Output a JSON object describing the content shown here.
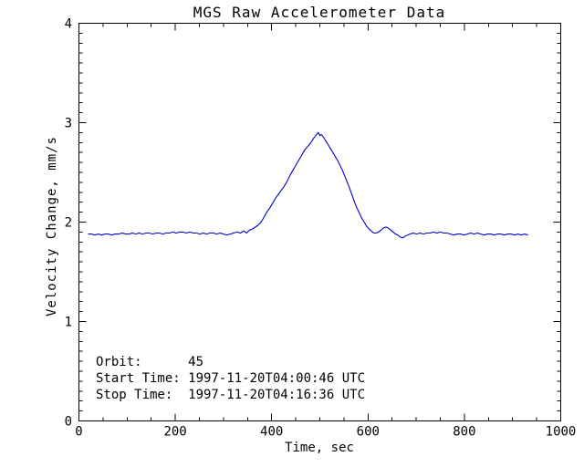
{
  "window": {
    "background": "#ffffff"
  },
  "chart_data": {
    "type": "line",
    "title": "MGS Raw Accelerometer Data",
    "xlabel": "Time, sec",
    "ylabel": "Velocity Change, mm/s",
    "xlim": [
      0,
      1000
    ],
    "ylim": [
      0,
      4
    ],
    "x_major_ticks": [
      0,
      200,
      400,
      600,
      800,
      1000
    ],
    "x_minor_interval": 50,
    "y_major_ticks": [
      0,
      1,
      2,
      3,
      4
    ],
    "y_minor_interval": 0.1,
    "grid": false,
    "legend": "none",
    "line_color": "#0000CD",
    "axis_color": "#000000",
    "annotations": {
      "lines": [
        "Orbit:      45",
        "Start Time: 1997-11-20T04:00:46 UTC",
        "Stop Time:  1997-11-20T04:16:36 UTC"
      ]
    },
    "series": [
      {
        "name": "velocity_change_mm_s",
        "points": [
          [
            19,
            1.88
          ],
          [
            26,
            1.88
          ],
          [
            33,
            1.87
          ],
          [
            40,
            1.88
          ],
          [
            47,
            1.87
          ],
          [
            54,
            1.88
          ],
          [
            61,
            1.88
          ],
          [
            68,
            1.87
          ],
          [
            75,
            1.88
          ],
          [
            82,
            1.88
          ],
          [
            90,
            1.89
          ],
          [
            97,
            1.88
          ],
          [
            104,
            1.88
          ],
          [
            111,
            1.89
          ],
          [
            118,
            1.88
          ],
          [
            125,
            1.89
          ],
          [
            132,
            1.88
          ],
          [
            139,
            1.89
          ],
          [
            146,
            1.89
          ],
          [
            153,
            1.88
          ],
          [
            160,
            1.89
          ],
          [
            167,
            1.89
          ],
          [
            174,
            1.88
          ],
          [
            181,
            1.89
          ],
          [
            188,
            1.89
          ],
          [
            195,
            1.9
          ],
          [
            202,
            1.89
          ],
          [
            209,
            1.9
          ],
          [
            216,
            1.9
          ],
          [
            223,
            1.89
          ],
          [
            230,
            1.9
          ],
          [
            237,
            1.89
          ],
          [
            244,
            1.89
          ],
          [
            251,
            1.88
          ],
          [
            258,
            1.89
          ],
          [
            265,
            1.88
          ],
          [
            272,
            1.89
          ],
          [
            279,
            1.89
          ],
          [
            286,
            1.88
          ],
          [
            293,
            1.89
          ],
          [
            300,
            1.88
          ],
          [
            307,
            1.87
          ],
          [
            314,
            1.88
          ],
          [
            321,
            1.89
          ],
          [
            328,
            1.9
          ],
          [
            335,
            1.89
          ],
          [
            342,
            1.91
          ],
          [
            348,
            1.89
          ],
          [
            354,
            1.92
          ],
          [
            360,
            1.93
          ],
          [
            366,
            1.95
          ],
          [
            372,
            1.97
          ],
          [
            378,
            2.0
          ],
          [
            384,
            2.05
          ],
          [
            390,
            2.1
          ],
          [
            396,
            2.14
          ],
          [
            402,
            2.19
          ],
          [
            408,
            2.24
          ],
          [
            414,
            2.28
          ],
          [
            420,
            2.32
          ],
          [
            426,
            2.36
          ],
          [
            432,
            2.41
          ],
          [
            438,
            2.47
          ],
          [
            444,
            2.52
          ],
          [
            450,
            2.57
          ],
          [
            456,
            2.62
          ],
          [
            462,
            2.67
          ],
          [
            468,
            2.72
          ],
          [
            473,
            2.75
          ],
          [
            478,
            2.78
          ],
          [
            483,
            2.81
          ],
          [
            488,
            2.85
          ],
          [
            493,
            2.88
          ],
          [
            497,
            2.9
          ],
          [
            500,
            2.87
          ],
          [
            503,
            2.88
          ],
          [
            507,
            2.86
          ],
          [
            512,
            2.82
          ],
          [
            517,
            2.78
          ],
          [
            522,
            2.74
          ],
          [
            527,
            2.7
          ],
          [
            532,
            2.66
          ],
          [
            537,
            2.62
          ],
          [
            542,
            2.57
          ],
          [
            547,
            2.52
          ],
          [
            552,
            2.46
          ],
          [
            557,
            2.4
          ],
          [
            562,
            2.34
          ],
          [
            567,
            2.27
          ],
          [
            572,
            2.2
          ],
          [
            577,
            2.14
          ],
          [
            582,
            2.09
          ],
          [
            587,
            2.04
          ],
          [
            592,
            2.0
          ],
          [
            597,
            1.96
          ],
          [
            602,
            1.93
          ],
          [
            607,
            1.91
          ],
          [
            612,
            1.89
          ],
          [
            617,
            1.89
          ],
          [
            622,
            1.9
          ],
          [
            627,
            1.92
          ],
          [
            632,
            1.94
          ],
          [
            637,
            1.95
          ],
          [
            642,
            1.94
          ],
          [
            647,
            1.92
          ],
          [
            652,
            1.9
          ],
          [
            657,
            1.88
          ],
          [
            662,
            1.87
          ],
          [
            667,
            1.85
          ],
          [
            672,
            1.84
          ],
          [
            677,
            1.86
          ],
          [
            682,
            1.87
          ],
          [
            687,
            1.88
          ],
          [
            694,
            1.89
          ],
          [
            701,
            1.88
          ],
          [
            708,
            1.89
          ],
          [
            715,
            1.88
          ],
          [
            722,
            1.89
          ],
          [
            729,
            1.89
          ],
          [
            736,
            1.9
          ],
          [
            743,
            1.89
          ],
          [
            750,
            1.9
          ],
          [
            757,
            1.89
          ],
          [
            764,
            1.89
          ],
          [
            771,
            1.88
          ],
          [
            778,
            1.87
          ],
          [
            785,
            1.88
          ],
          [
            792,
            1.88
          ],
          [
            799,
            1.87
          ],
          [
            806,
            1.88
          ],
          [
            813,
            1.89
          ],
          [
            820,
            1.88
          ],
          [
            827,
            1.89
          ],
          [
            834,
            1.88
          ],
          [
            841,
            1.87
          ],
          [
            848,
            1.88
          ],
          [
            855,
            1.88
          ],
          [
            862,
            1.87
          ],
          [
            869,
            1.88
          ],
          [
            876,
            1.88
          ],
          [
            883,
            1.87
          ],
          [
            890,
            1.88
          ],
          [
            897,
            1.88
          ],
          [
            904,
            1.87
          ],
          [
            911,
            1.88
          ],
          [
            918,
            1.87
          ],
          [
            925,
            1.88
          ],
          [
            932,
            1.87
          ]
        ]
      }
    ]
  }
}
